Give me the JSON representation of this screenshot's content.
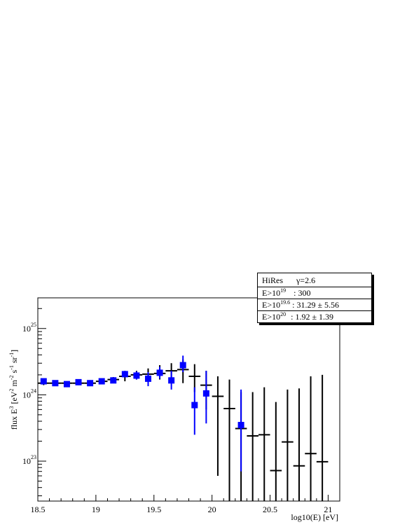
{
  "chart_data": {
    "type": "scatter",
    "title": "",
    "xlabel": "log10(E) [eV]",
    "ylabel": "flux E^3 [eV^2 m^-2 s^-1 sr^-1]",
    "xlim": [
      18.5,
      21.1
    ],
    "ylim": [
      2.5e+22,
      2.9e+25
    ],
    "yscale": "log",
    "x_ticks": [
      "18.5",
      "19",
      "19.5",
      "20",
      "20.5",
      "21"
    ],
    "y_ticks": [
      {
        "base": "10",
        "exp": "23",
        "value": 1e+23
      },
      {
        "base": "10",
        "exp": "24",
        "value": 1e+24
      },
      {
        "base": "10",
        "exp": "25",
        "value": 1e+25
      }
    ],
    "ylabel_parts": {
      "a": "flux E",
      "b": "3",
      "c": " [eV",
      "d": "2",
      "e": " m",
      "f": "-2",
      "g": " s",
      "h": "-1",
      "i": " sr",
      "j": "-1",
      "k": "]"
    },
    "grid": false,
    "series": [
      {
        "marker": "none",
        "color": "#000000",
        "x_halfwidth": 0.05,
        "points": [
          {
            "x": 18.55,
            "y": 1.5e+24,
            "lo": 1.4e+24,
            "hi": 1.6e+24
          },
          {
            "x": 18.65,
            "y": 1.5e+24,
            "lo": 1.4e+24,
            "hi": 1.6e+24
          },
          {
            "x": 18.75,
            "y": 1.5e+24,
            "lo": 1.4e+24,
            "hi": 1.6e+24
          },
          {
            "x": 18.85,
            "y": 1.5e+24,
            "lo": 1.4e+24,
            "hi": 1.6e+24
          },
          {
            "x": 18.95,
            "y": 1.5e+24,
            "lo": 1.4e+24,
            "hi": 1.6e+24
          },
          {
            "x": 19.05,
            "y": 1.6e+24,
            "lo": 1.5e+24,
            "hi": 1.7e+24
          },
          {
            "x": 19.15,
            "y": 1.7e+24,
            "lo": 1.55e+24,
            "hi": 1.85e+24
          },
          {
            "x": 19.25,
            "y": 1.9e+24,
            "lo": 1.6e+24,
            "hi": 2.2e+24
          },
          {
            "x": 19.35,
            "y": 2e+24,
            "lo": 1.7e+24,
            "hi": 2.3e+24
          },
          {
            "x": 19.45,
            "y": 2.05e+24,
            "lo": 1.7e+24,
            "hi": 2.5e+24
          },
          {
            "x": 19.55,
            "y": 2.1e+24,
            "lo": 1.7e+24,
            "hi": 2.8e+24
          },
          {
            "x": 19.65,
            "y": 2.3e+24,
            "lo": 1.6e+24,
            "hi": 3e+24
          },
          {
            "x": 19.75,
            "y": 2.4e+24,
            "lo": 1.5e+24,
            "hi": 3.4e+24
          },
          {
            "x": 19.85,
            "y": 1.9e+24,
            "lo": 1.1e+24,
            "hi": 2.9e+24
          },
          {
            "x": 19.95,
            "y": 1.4e+24,
            "lo": 6e+23,
            "hi": 2.3e+24
          },
          {
            "x": 20.05,
            "y": 9.5e+23,
            "lo": 6e+22,
            "hi": 1.9e+24
          },
          {
            "x": 20.15,
            "y": 6.2e+23,
            "lo": 2e+22,
            "hi": 1.7e+24
          },
          {
            "x": 20.25,
            "y": 3.1e+23,
            "lo": 2e+22,
            "hi": 1.1e+24
          },
          {
            "x": 20.35,
            "y": 2.4e+23,
            "lo": 2e+22,
            "hi": 1.1e+24
          },
          {
            "x": 20.45,
            "y": 2.5e+23,
            "lo": 2e+22,
            "hi": 1.3e+24
          },
          {
            "x": 20.55,
            "y": 7.2e+22,
            "lo": 2e+22,
            "hi": 7.8e+23
          },
          {
            "x": 20.65,
            "y": 1.95e+23,
            "lo": 2e+22,
            "hi": 1.2e+24
          },
          {
            "x": 20.75,
            "y": 8.5e+22,
            "lo": 2e+22,
            "hi": 1.25e+24
          },
          {
            "x": 20.85,
            "y": 1.3e+23,
            "lo": 2e+22,
            "hi": 1.9e+24
          },
          {
            "x": 20.95,
            "y": 9.8e+22,
            "lo": 2e+22,
            "hi": 2e+24
          }
        ]
      },
      {
        "marker": "square",
        "color": "#0000ff",
        "points": [
          {
            "x": 18.55,
            "y": 1.6e+24,
            "lo": 1.5e+24,
            "hi": 1.7e+24
          },
          {
            "x": 18.65,
            "y": 1.5e+24,
            "lo": 1.4e+24,
            "hi": 1.6e+24
          },
          {
            "x": 18.75,
            "y": 1.45e+24,
            "lo": 1.35e+24,
            "hi": 1.55e+24
          },
          {
            "x": 18.85,
            "y": 1.55e+24,
            "lo": 1.45e+24,
            "hi": 1.65e+24
          },
          {
            "x": 18.95,
            "y": 1.5e+24,
            "lo": 1.4e+24,
            "hi": 1.62e+24
          },
          {
            "x": 19.05,
            "y": 1.6e+24,
            "lo": 1.48e+24,
            "hi": 1.72e+24
          },
          {
            "x": 19.15,
            "y": 1.65e+24,
            "lo": 1.5e+24,
            "hi": 1.8e+24
          },
          {
            "x": 19.25,
            "y": 2.05e+24,
            "lo": 1.85e+24,
            "hi": 2.3e+24
          },
          {
            "x": 19.35,
            "y": 1.95e+24,
            "lo": 1.7e+24,
            "hi": 2.25e+24
          },
          {
            "x": 19.45,
            "y": 1.75e+24,
            "lo": 1.35e+24,
            "hi": 2.2e+24
          },
          {
            "x": 19.55,
            "y": 2.15e+24,
            "lo": 1.75e+24,
            "hi": 2.65e+24
          },
          {
            "x": 19.65,
            "y": 1.65e+24,
            "lo": 1.2e+24,
            "hi": 2.3e+24
          },
          {
            "x": 19.75,
            "y": 2.8e+24,
            "lo": 2.2e+24,
            "hi": 3.9e+24
          },
          {
            "x": 19.85,
            "y": 7e+23,
            "lo": 2.5e+23,
            "hi": 1.3e+24
          },
          {
            "x": 19.95,
            "y": 1.05e+24,
            "lo": 3.7e+23,
            "hi": 2.3e+24
          },
          {
            "x": 20.25,
            "y": 3.5e+23,
            "lo": 7e+22,
            "hi": 1.2e+24
          }
        ]
      }
    ],
    "stats_box": {
      "row1_a": "HiRes",
      "row1_b": "γ=2.6",
      "row2_base": "E>10",
      "row2_exp": "19",
      "row2_val": ": 300",
      "row3_base": "E>10",
      "row3_exp": "19.6",
      "row3_val": ": 31.29 ± 5.56",
      "row4_base": "E>10",
      "row4_exp": "20",
      "row4_val": ": 1.92 ± 1.39"
    }
  }
}
